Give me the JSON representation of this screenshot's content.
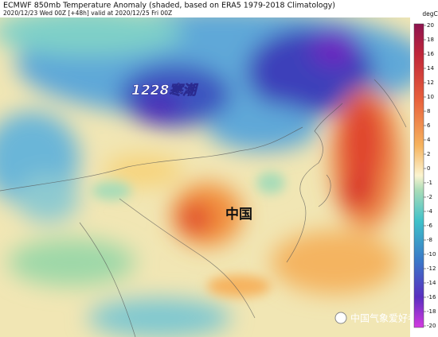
{
  "header": {
    "title": "ECMWF 850mb Temperature Anomaly (shaded, based on ERA5 1979-2018 Climatology)",
    "subtitle": "2020/12/23 Wed 00Z [+48h] valid at 2020/12/25 Fri 00Z"
  },
  "map": {
    "labels": [
      "1228寒潮",
      "中国"
    ],
    "watermark": "中国气象爱好者"
  },
  "colorbar": {
    "unit": "degC",
    "ticks": [
      20,
      18,
      16,
      14,
      12,
      10,
      8,
      6,
      4,
      2,
      0,
      -1,
      -2,
      -4,
      -6,
      -8,
      -10,
      -12,
      -14,
      -16,
      -18,
      -20
    ]
  }
}
